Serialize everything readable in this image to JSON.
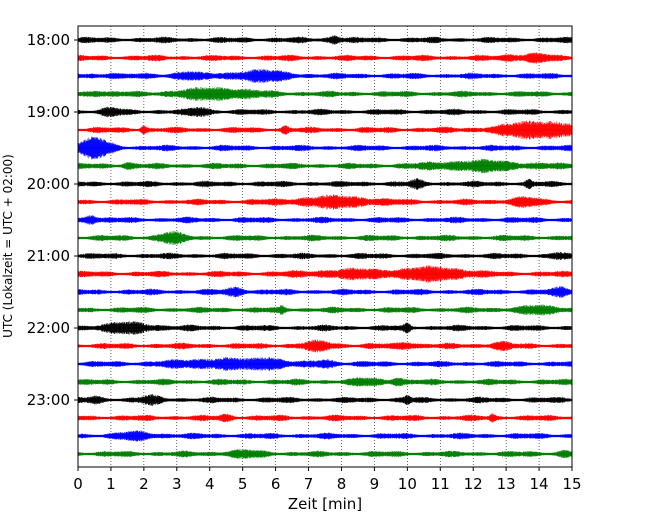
{
  "chart_data": {
    "type": "line",
    "title": "",
    "xlabel": "Zeit  [min]",
    "ylabel": "UTC (Lokalzeit = UTC + 02:00)",
    "xlim": [
      0,
      15
    ],
    "x_ticks": [
      0,
      1,
      2,
      3,
      4,
      5,
      6,
      7,
      8,
      9,
      10,
      11,
      12,
      13,
      14,
      15
    ],
    "y_tick_labels": [
      "18:00",
      "19:00",
      "20:00",
      "21:00",
      "22:00",
      "23:00"
    ],
    "grid": "vertical dotted lines at each minute",
    "legend": "none",
    "colors": [
      "#000000",
      "#ff0000",
      "#0000ff",
      "#008000"
    ],
    "traces": [
      {
        "start": "18:00",
        "color": "#000000",
        "bursts": [
          {
            "t": 7.8,
            "a": 1.5,
            "w": 0.2
          }
        ]
      },
      {
        "start": "18:15",
        "color": "#ff0000",
        "bursts": [
          {
            "t": 13.9,
            "a": 1.5,
            "w": 0.4
          },
          {
            "t": 13.2,
            "a": 1.0,
            "w": 0.3
          }
        ]
      },
      {
        "start": "18:30",
        "color": "#0000ff",
        "bursts": [
          {
            "t": 5.5,
            "a": 2.0,
            "w": 0.9
          },
          {
            "t": 3.3,
            "a": 1.5,
            "w": 0.4
          },
          {
            "t": 1.0,
            "a": 1.0,
            "w": 0.2
          }
        ]
      },
      {
        "start": "18:45",
        "color": "#008000",
        "bursts": [
          {
            "t": 4.2,
            "a": 2.2,
            "w": 1.2
          },
          {
            "t": 0.6,
            "a": 1.0,
            "w": 0.3
          }
        ]
      },
      {
        "start": "19:00",
        "color": "#000000",
        "bursts": [
          {
            "t": 3.7,
            "a": 1.5,
            "w": 0.3
          },
          {
            "t": 1.0,
            "a": 1.2,
            "w": 0.3
          }
        ]
      },
      {
        "start": "19:15",
        "color": "#ff0000",
        "bursts": [
          {
            "t": 14.0,
            "a": 3.5,
            "w": 1.2
          },
          {
            "t": 2.0,
            "a": 1.5,
            "w": 0.1
          },
          {
            "t": 6.3,
            "a": 1.5,
            "w": 0.1
          }
        ]
      },
      {
        "start": "19:30",
        "color": "#0000ff",
        "bursts": [
          {
            "t": 0.5,
            "a": 4.0,
            "w": 0.5
          }
        ]
      },
      {
        "start": "19:45",
        "color": "#008000",
        "bursts": [
          {
            "t": 12.2,
            "a": 1.8,
            "w": 1.5
          },
          {
            "t": 1.5,
            "a": 1.0,
            "w": 0.2
          }
        ]
      },
      {
        "start": "20:00",
        "color": "#000000",
        "bursts": [
          {
            "t": 10.3,
            "a": 1.2,
            "w": 0.2
          },
          {
            "t": 13.7,
            "a": 1.2,
            "w": 0.1
          }
        ]
      },
      {
        "start": "20:15",
        "color": "#ff0000",
        "bursts": [
          {
            "t": 7.8,
            "a": 2.0,
            "w": 1.3
          },
          {
            "t": 13.5,
            "a": 1.5,
            "w": 0.5
          }
        ]
      },
      {
        "start": "20:30",
        "color": "#0000ff",
        "bursts": [
          {
            "t": 0.4,
            "a": 1.8,
            "w": 0.2
          }
        ]
      },
      {
        "start": "20:45",
        "color": "#008000",
        "bursts": [
          {
            "t": 2.8,
            "a": 2.0,
            "w": 0.4
          }
        ]
      },
      {
        "start": "21:00",
        "color": "#000000",
        "bursts": [
          {
            "t": 14.6,
            "a": 1.0,
            "w": 0.2
          }
        ]
      },
      {
        "start": "21:15",
        "color": "#ff0000",
        "bursts": [
          {
            "t": 10.9,
            "a": 2.5,
            "w": 1.0
          },
          {
            "t": 8.5,
            "a": 1.5,
            "w": 1.5
          }
        ]
      },
      {
        "start": "21:30",
        "color": "#0000ff",
        "bursts": [
          {
            "t": 4.8,
            "a": 1.5,
            "w": 0.3
          },
          {
            "t": 14.7,
            "a": 1.5,
            "w": 0.3
          }
        ]
      },
      {
        "start": "21:45",
        "color": "#008000",
        "bursts": [
          {
            "t": 14.0,
            "a": 1.2,
            "w": 0.8
          },
          {
            "t": 6.2,
            "a": 1.0,
            "w": 0.1
          }
        ]
      },
      {
        "start": "22:00",
        "color": "#000000",
        "bursts": [
          {
            "t": 1.5,
            "a": 1.8,
            "w": 0.9
          },
          {
            "t": 10.0,
            "a": 1.5,
            "w": 0.1
          }
        ]
      },
      {
        "start": "22:15",
        "color": "#ff0000",
        "bursts": [
          {
            "t": 7.3,
            "a": 1.5,
            "w": 0.5
          },
          {
            "t": 10.0,
            "a": 1.2,
            "w": 0.3
          },
          {
            "t": 12.8,
            "a": 1.2,
            "w": 0.3
          }
        ]
      },
      {
        "start": "22:30",
        "color": "#0000ff",
        "bursts": [
          {
            "t": 4.3,
            "a": 1.8,
            "w": 1.5
          },
          {
            "t": 5.8,
            "a": 2.0,
            "w": 0.4
          },
          {
            "t": 7.5,
            "a": 1.5,
            "w": 0.3
          }
        ]
      },
      {
        "start": "22:45",
        "color": "#008000",
        "bursts": [
          {
            "t": 9.7,
            "a": 1.5,
            "w": 0.2
          },
          {
            "t": 8.8,
            "a": 1.0,
            "w": 0.5
          }
        ]
      },
      {
        "start": "23:00",
        "color": "#000000",
        "bursts": [
          {
            "t": 10.0,
            "a": 1.5,
            "w": 0.1
          },
          {
            "t": 2.2,
            "a": 1.2,
            "w": 0.3
          },
          {
            "t": 0.5,
            "a": 1.0,
            "w": 0.2
          }
        ]
      },
      {
        "start": "23:15",
        "color": "#ff0000",
        "bursts": [
          {
            "t": 12.6,
            "a": 1.2,
            "w": 0.1
          },
          {
            "t": 4.5,
            "a": 1.0,
            "w": 0.2
          }
        ]
      },
      {
        "start": "23:30",
        "color": "#0000ff",
        "bursts": [
          {
            "t": 1.8,
            "a": 1.2,
            "w": 0.6
          }
        ]
      },
      {
        "start": "23:45",
        "color": "#008000",
        "bursts": [
          {
            "t": 5.0,
            "a": 1.0,
            "w": 0.6
          },
          {
            "t": 14.8,
            "a": 1.0,
            "w": 0.2
          }
        ]
      }
    ]
  }
}
